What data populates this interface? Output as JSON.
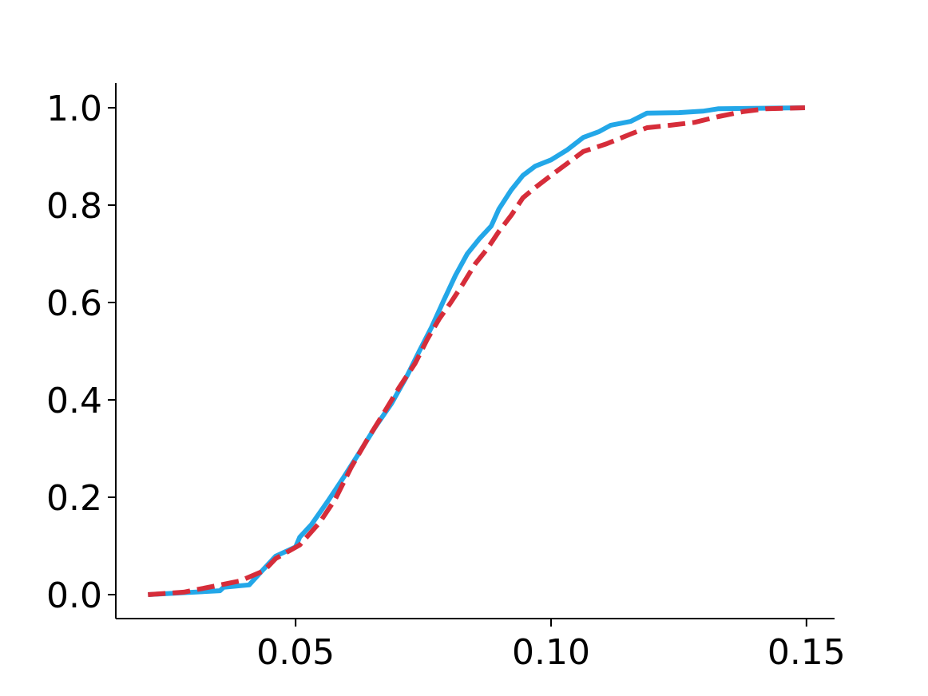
{
  "chart_data": {
    "type": "line",
    "xlim": [
      0.0148,
      0.1555
    ],
    "ylim": [
      -0.0492,
      1.0508
    ],
    "xticks": [
      0.05,
      {
        "value": 0.1,
        "label": "0.10"
      },
      0.15
    ],
    "yticks": [
      {
        "value": 0,
        "label": "0.0"
      },
      0.2,
      0.4,
      0.6,
      0.8,
      {
        "value": 1,
        "label": "1.0"
      }
    ],
    "grid": false,
    "series": [
      {
        "color": "#23a7e8",
        "dashed": false,
        "x": [
          0.0211,
          0.0352,
          0.0359,
          0.0409,
          0.043,
          0.0461,
          0.05,
          0.0508,
          0.0531,
          0.0563,
          0.0594,
          0.0625,
          0.0656,
          0.0688,
          0.0719,
          0.0742,
          0.0766,
          0.0789,
          0.0813,
          0.0836,
          0.0859,
          0.0883,
          0.0898,
          0.0922,
          0.0945,
          0.0969,
          0.1,
          0.1031,
          0.1063,
          0.1094,
          0.1117,
          0.1156,
          0.1188,
          0.125,
          0.1297,
          0.1328,
          0.1497
        ],
        "values": [
          0,
          0.008,
          0.015,
          0.02,
          0.044,
          0.079,
          0.098,
          0.118,
          0.144,
          0.192,
          0.241,
          0.292,
          0.344,
          0.393,
          0.451,
          0.5,
          0.549,
          0.602,
          0.656,
          0.7,
          0.73,
          0.757,
          0.792,
          0.831,
          0.861,
          0.88,
          0.893,
          0.913,
          0.939,
          0.951,
          0.964,
          0.972,
          0.989,
          0.99,
          0.993,
          0.998,
          1
        ]
      },
      {
        "color": "#d62d3a",
        "dashed": true,
        "x": [
          0.0211,
          0.0281,
          0.0344,
          0.0391,
          0.0438,
          0.0461,
          0.0508,
          0.0547,
          0.0578,
          0.0609,
          0.0641,
          0.0672,
          0.0703,
          0.0734,
          0.0758,
          0.0781,
          0.0805,
          0.0828,
          0.0852,
          0.0875,
          0.0898,
          0.0922,
          0.0945,
          0.0969,
          0.1,
          0.1031,
          0.1063,
          0.1109,
          0.1156,
          0.1188,
          0.1234,
          0.1281,
          0.1328,
          0.1375,
          0.1422,
          0.1497
        ],
        "values": [
          0,
          0.005,
          0.018,
          0.028,
          0.049,
          0.074,
          0.102,
          0.148,
          0.197,
          0.262,
          0.32,
          0.372,
          0.426,
          0.475,
          0.525,
          0.566,
          0.602,
          0.639,
          0.68,
          0.71,
          0.746,
          0.779,
          0.815,
          0.836,
          0.861,
          0.885,
          0.91,
          0.926,
          0.946,
          0.959,
          0.964,
          0.97,
          0.982,
          0.992,
          0.998,
          1
        ]
      }
    ]
  }
}
